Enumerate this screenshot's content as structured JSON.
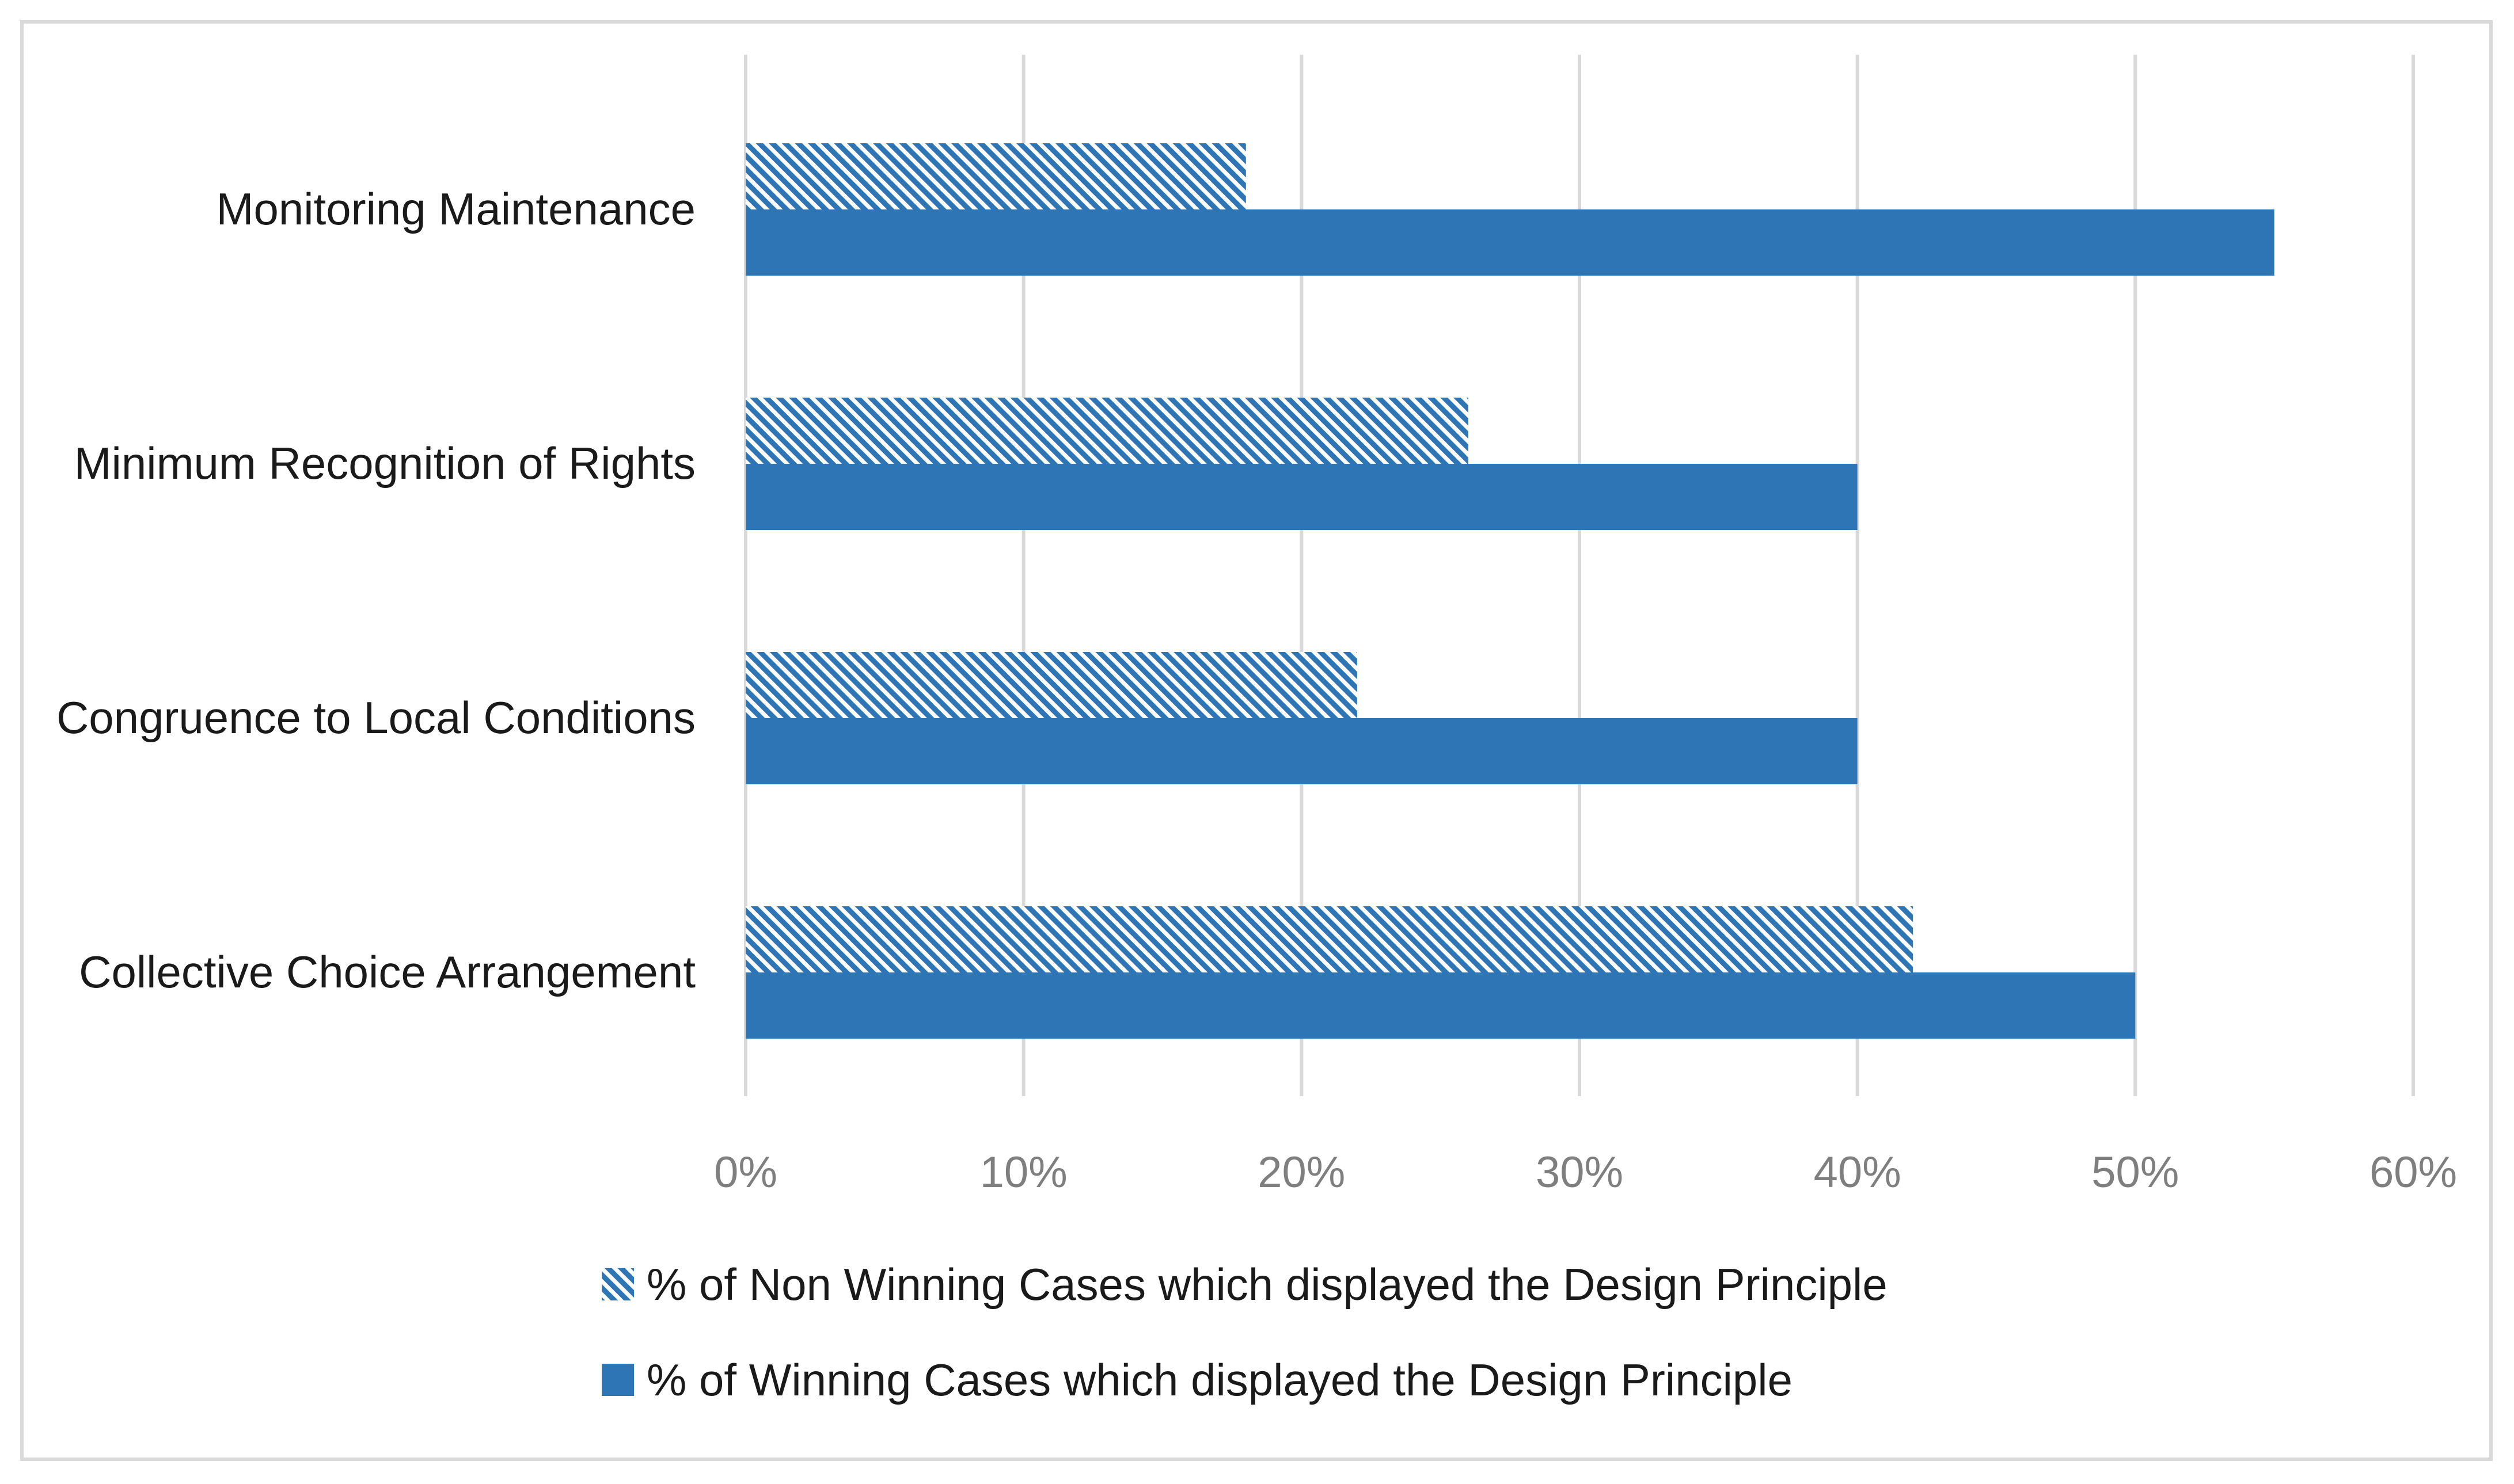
{
  "chart_data": {
    "type": "bar",
    "orientation": "horizontal",
    "title": "",
    "xlabel": "",
    "ylabel": "",
    "categories": [
      "Monitoring Maintenance",
      "Minimum Recognition of Rights",
      "Congruence to Local Conditions",
      "Collective Choice Arrangement"
    ],
    "series": [
      {
        "name": "% of Non Winning Cases which displayed the Design Principle",
        "pattern": "diagonal-hatch",
        "color": "#2E75B6",
        "values": [
          18,
          26,
          22,
          42
        ]
      },
      {
        "name": "% of Winning Cases which displayed the Design Principle",
        "pattern": "solid",
        "color": "#2E75B6",
        "values": [
          55,
          40,
          40,
          50
        ]
      }
    ],
    "xlim": [
      0,
      60
    ],
    "xticks": [
      0,
      10,
      20,
      30,
      40,
      50,
      60
    ],
    "xtick_labels": [
      "0%",
      "10%",
      "20%",
      "30%",
      "40%",
      "50%",
      "60%"
    ],
    "grid": "vertical",
    "legend_position": "bottom"
  },
  "colors": {
    "bar": "#2E75B6",
    "grid": "#d9d9d9",
    "tick_text": "#7f7f7f",
    "label_text": "#1a1a1a"
  }
}
